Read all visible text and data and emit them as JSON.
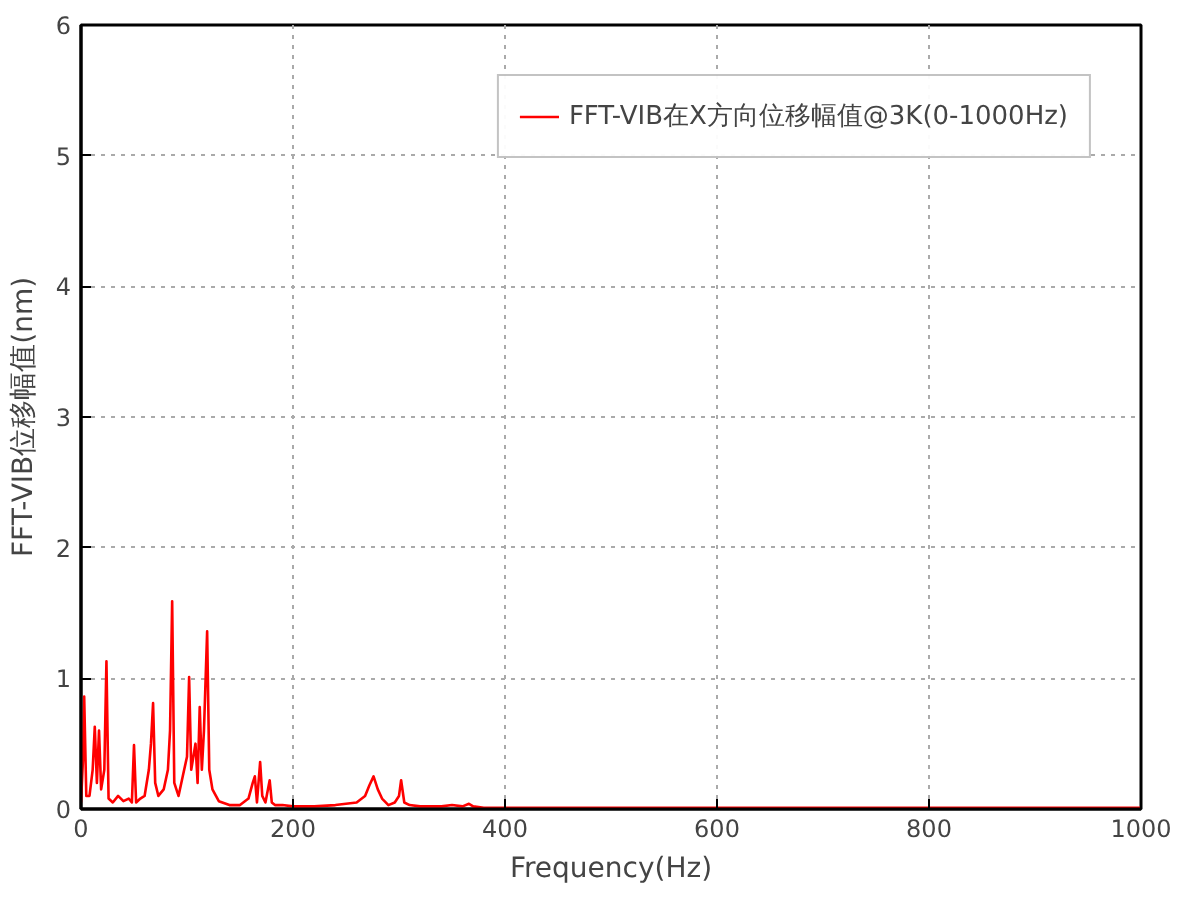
{
  "chart_data": {
    "type": "line",
    "xlabel": "Frequency(Hz)",
    "ylabel": "FFT-VIB位移幅值(nm)",
    "xlim": [
      0,
      1000
    ],
    "ylim": [
      0,
      6
    ],
    "xticks": [
      0,
      200,
      400,
      600,
      800,
      1000
    ],
    "yticks": [
      0,
      1,
      2,
      3,
      4,
      5,
      6
    ],
    "grid": true,
    "legend": "top right",
    "line_style": "solid",
    "marker": "none",
    "series": [
      {
        "name": "FFT-VIB在X方向位移幅值@3K(0-1000Hz)",
        "color": "#ff0000",
        "x": [
          0,
          2,
          3,
          5,
          8,
          11,
          13,
          15,
          17,
          19,
          22,
          24,
          26,
          30,
          35,
          40,
          45,
          48,
          50,
          52,
          56,
          60,
          64,
          66,
          68,
          70,
          73,
          78,
          82,
          84,
          86,
          88,
          92,
          96,
          100,
          102,
          104,
          108,
          110,
          112,
          114,
          116,
          119,
          121,
          124,
          130,
          140,
          150,
          158,
          162,
          164,
          166,
          169,
          171,
          174,
          178,
          180,
          183,
          190,
          200,
          220,
          240,
          260,
          268,
          272,
          276,
          280,
          284,
          290,
          296,
          300,
          302,
          305,
          310,
          320,
          340,
          350,
          360,
          366,
          370,
          380,
          400,
          450,
          500,
          600,
          700,
          800,
          900,
          1000
        ],
        "values": [
          0.05,
          0.4,
          0.86,
          0.1,
          0.1,
          0.3,
          0.63,
          0.2,
          0.6,
          0.15,
          0.3,
          1.13,
          0.08,
          0.05,
          0.1,
          0.06,
          0.08,
          0.05,
          0.49,
          0.05,
          0.08,
          0.1,
          0.3,
          0.5,
          0.81,
          0.2,
          0.1,
          0.15,
          0.3,
          0.6,
          1.59,
          0.2,
          0.1,
          0.25,
          0.4,
          1.01,
          0.3,
          0.5,
          0.2,
          0.78,
          0.3,
          0.6,
          1.36,
          0.3,
          0.15,
          0.06,
          0.03,
          0.03,
          0.08,
          0.2,
          0.25,
          0.05,
          0.36,
          0.1,
          0.05,
          0.22,
          0.05,
          0.03,
          0.03,
          0.02,
          0.02,
          0.03,
          0.05,
          0.1,
          0.18,
          0.25,
          0.15,
          0.08,
          0.03,
          0.05,
          0.1,
          0.22,
          0.05,
          0.03,
          0.02,
          0.02,
          0.03,
          0.02,
          0.04,
          0.02,
          0.01,
          0.01,
          0.01,
          0.01,
          0.01,
          0.01,
          0.01,
          0.01,
          0.01
        ]
      }
    ]
  }
}
